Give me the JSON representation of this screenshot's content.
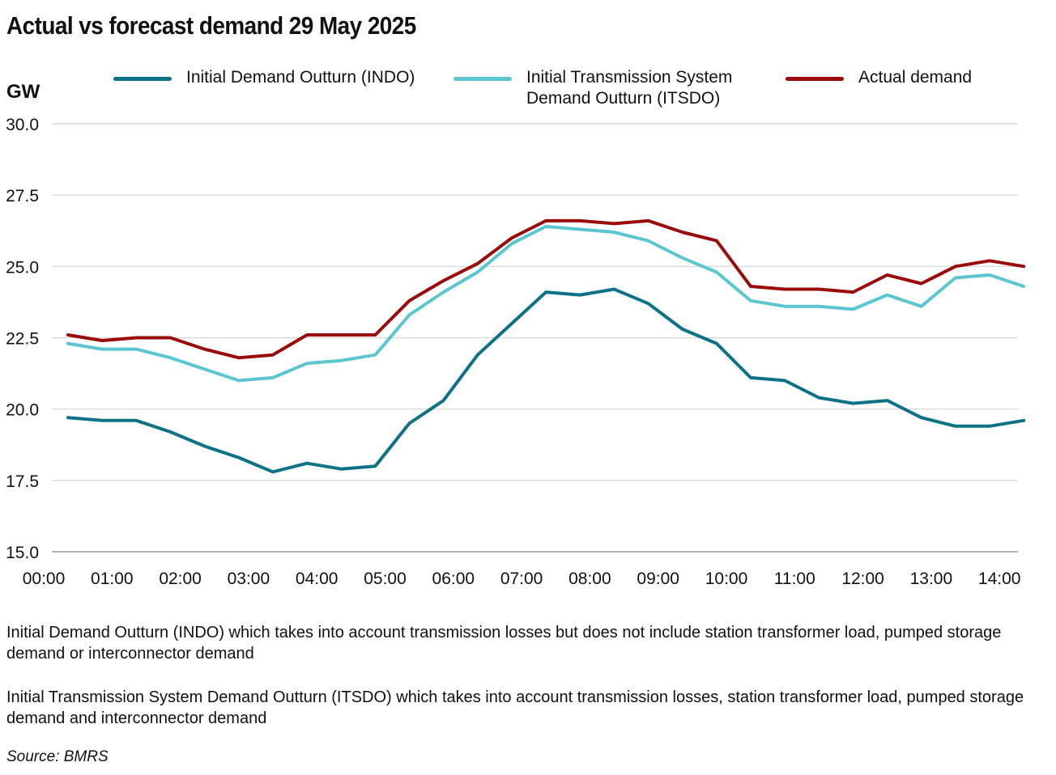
{
  "chart_data": {
    "type": "line",
    "title": "Actual vs forecast demand 29 May 2025",
    "ylabel": "GW",
    "ylim": [
      15.0,
      30.0
    ],
    "y_ticks": [
      "15.0",
      "17.5",
      "20.0",
      "22.5",
      "25.0",
      "27.5",
      "30.0"
    ],
    "x_ticks": [
      "00:00",
      "01:00",
      "02:00",
      "03:00",
      "04:00",
      "05:00",
      "06:00",
      "07:00",
      "08:00",
      "09:00",
      "10:00",
      "11:00",
      "12:00",
      "13:00",
      "14:00"
    ],
    "x": [
      "00:30",
      "01:00",
      "01:30",
      "02:00",
      "02:30",
      "03:00",
      "03:30",
      "04:00",
      "04:30",
      "05:00",
      "05:30",
      "06:00",
      "06:30",
      "07:00",
      "07:30",
      "08:00",
      "08:30",
      "09:00",
      "09:30",
      "10:00",
      "10:30",
      "11:00",
      "11:30",
      "12:00",
      "12:30",
      "13:00",
      "13:30",
      "14:00",
      "14:30"
    ],
    "grid": true,
    "legend_position": "top",
    "series": [
      {
        "name": "Initial Demand Outturn (INDO)",
        "color": "#0d7286",
        "values": [
          19.7,
          19.6,
          19.6,
          19.2,
          18.7,
          18.3,
          17.8,
          18.1,
          17.9,
          18.0,
          19.5,
          20.3,
          21.9,
          23.0,
          24.1,
          24.0,
          24.2,
          23.7,
          22.8,
          22.3,
          21.1,
          21.0,
          20.4,
          20.2,
          20.3,
          19.7,
          19.4,
          19.4,
          19.6
        ]
      },
      {
        "name": "Initial Transmission System Demand Outturn (ITSDO)",
        "color": "#5cc6d0",
        "values": [
          22.3,
          22.1,
          22.1,
          21.8,
          21.4,
          21.0,
          21.1,
          21.6,
          21.7,
          21.9,
          23.3,
          24.1,
          24.8,
          25.8,
          26.4,
          26.3,
          26.2,
          25.9,
          25.3,
          24.8,
          23.8,
          23.6,
          23.6,
          23.5,
          24.0,
          23.6,
          24.6,
          24.7,
          24.3
        ]
      },
      {
        "name": "Actual demand",
        "color": "#9a0b0b",
        "values": [
          22.6,
          22.4,
          22.5,
          22.5,
          22.1,
          21.8,
          21.9,
          22.6,
          22.6,
          22.6,
          23.8,
          24.5,
          25.1,
          26.0,
          26.6,
          26.6,
          26.5,
          26.6,
          26.2,
          25.9,
          24.3,
          24.2,
          24.2,
          24.1,
          24.7,
          24.4,
          25.0,
          25.2,
          25.0
        ]
      }
    ]
  },
  "notes": [
    "Initial Demand Outturn (INDO) which takes into account transmission losses but does not include station transformer load, pumped storage demand or interconnector demand",
    "Initial Transmission System Demand Outturn (ITSDO) which takes into account transmission losses, station transformer load, pumped storage demand and interconnector demand"
  ],
  "source": "Source: BMRS"
}
